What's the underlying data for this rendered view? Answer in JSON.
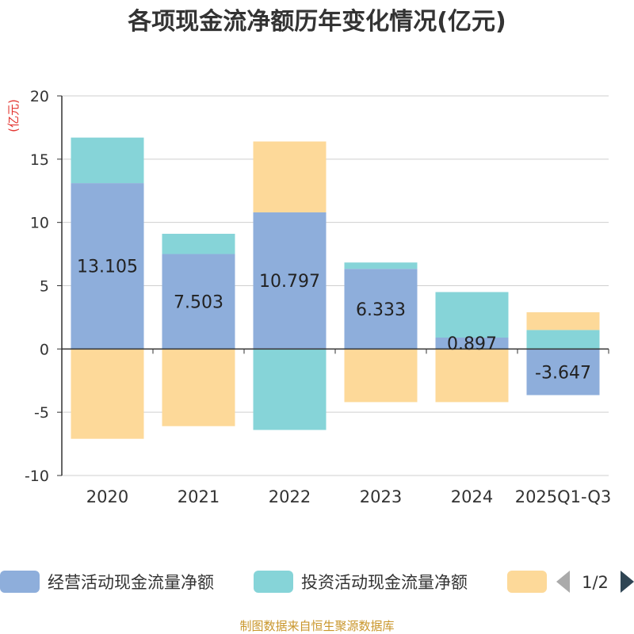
{
  "chart_data": {
    "type": "bar",
    "stacked": true,
    "title": "各项现金流净额历年变化情况(亿元)",
    "ylabel": "(亿元)",
    "ylim": [
      -10,
      20
    ],
    "yticks": [
      20,
      15,
      10,
      5,
      0,
      -5,
      -10
    ],
    "categories": [
      "2020",
      "2021",
      "2022",
      "2023",
      "2024",
      "2025Q1-Q3"
    ],
    "series": [
      {
        "name": "经营活动现金流量净额",
        "color": "#8eaedb",
        "values": [
          13.105,
          7.503,
          10.797,
          6.333,
          0.897,
          -3.647
        ],
        "labels": [
          "13.105",
          "7.503",
          "10.797",
          "6.333",
          "0.897",
          "-3.647"
        ]
      },
      {
        "name": "投资活动现金流量净额",
        "color": "#86d4d8",
        "values": [
          3.6,
          1.6,
          -6.4,
          0.5,
          3.6,
          1.5
        ]
      },
      {
        "name": "",
        "color": "#fdd999",
        "values": [
          -7.1,
          -6.1,
          5.6,
          -4.2,
          -4.2,
          1.4
        ]
      }
    ],
    "legend": {
      "page": "1/2"
    }
  },
  "source": "制图数据来自恒生聚源数据库"
}
